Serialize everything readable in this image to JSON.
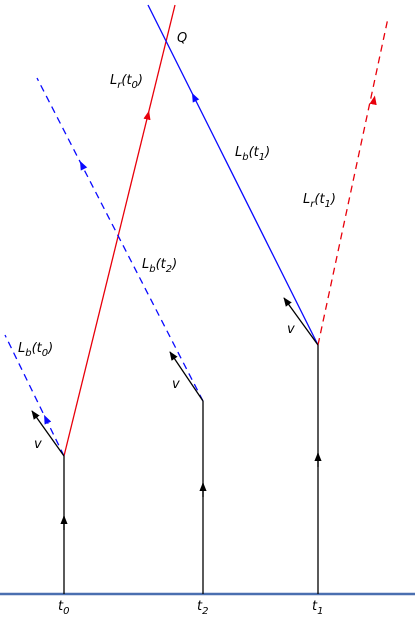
{
  "colors": {
    "red": "#e8000b",
    "blue": "#0a0aff",
    "black": "#000000",
    "axis": "#4a6fb0"
  },
  "labels": {
    "q": "Q",
    "lr_t0": {
      "main": "L",
      "sub": "r",
      "arg": "(t",
      "argsub": "0",
      "close": ")"
    },
    "lr_t1": {
      "main": "L",
      "sub": "r",
      "arg": "(t",
      "argsub": "1",
      "close": ")"
    },
    "lb_t0": {
      "main": "L",
      "sub": "b",
      "arg": "(t",
      "argsub": "0",
      "close": ")"
    },
    "lb_t1": {
      "main": "L",
      "sub": "b",
      "arg": "(t",
      "argsub": "1",
      "close": ")"
    },
    "lb_t2": {
      "main": "L",
      "sub": "b",
      "arg": "(t",
      "argsub": "2",
      "close": ")"
    },
    "v": "v",
    "ticks": [
      {
        "main": "t",
        "sub": "0"
      },
      {
        "main": "t",
        "sub": "2"
      },
      {
        "main": "t",
        "sub": "1"
      }
    ]
  }
}
